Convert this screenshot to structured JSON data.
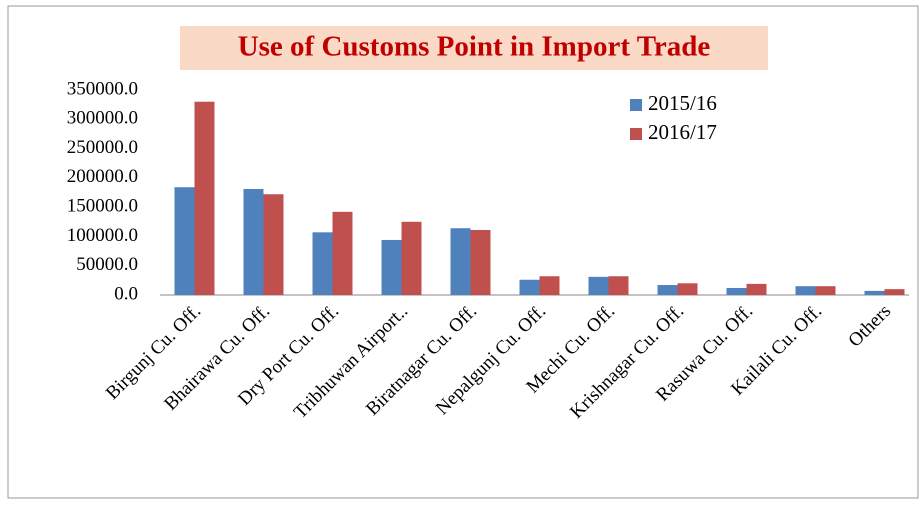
{
  "chart_data": {
    "type": "bar",
    "title": "Use of Customs Point in Import Trade",
    "categories": [
      "Birgunj Cu. Off.",
      "Bhairawa Cu. Off.",
      "Dry Port Cu. Off.",
      "Tribhuwan Airport..",
      "Biratnagar Cu. Off.",
      "Nepalgunj Cu. Off.",
      "Mechi Cu. Off.",
      "Krishnagar Cu. Off.",
      "Rasuwa Cu. Off.",
      "Kailali Cu. Off.",
      "Others"
    ],
    "series": [
      {
        "name": "2015/16",
        "color": "#4f81bd",
        "values": [
          184000,
          181000,
          107000,
          94000,
          114000,
          26000,
          31000,
          17000,
          12000,
          15000,
          7000
        ]
      },
      {
        "name": "2016/17",
        "color": "#c0504d",
        "values": [
          330000,
          172000,
          142000,
          125000,
          111000,
          32000,
          32000,
          20000,
          19000,
          15000,
          10000
        ]
      }
    ],
    "ylim": [
      0,
      350000
    ],
    "yticks": [
      {
        "value": 0,
        "label": "0.0"
      },
      {
        "value": 50000,
        "label": "50000.0"
      },
      {
        "value": 100000,
        "label": "100000.0"
      },
      {
        "value": 150000,
        "label": "150000.0"
      },
      {
        "value": 200000,
        "label": "200000.0"
      },
      {
        "value": 250000,
        "label": "250000.0"
      },
      {
        "value": 300000,
        "label": "300000.0"
      },
      {
        "value": 350000,
        "label": "350000.0"
      }
    ],
    "grid": false,
    "legend": "top-right"
  }
}
